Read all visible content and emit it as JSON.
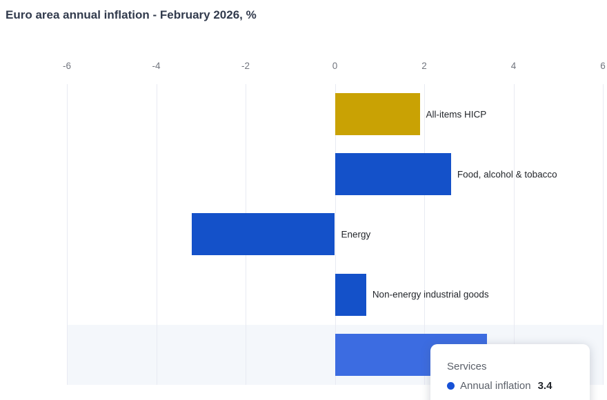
{
  "title": "Euro area annual inflation - February 2026, %",
  "chart_data": {
    "type": "bar",
    "orientation": "horizontal",
    "title": "Euro area annual inflation - February 2026, %",
    "categories": [
      "All-items HICP",
      "Food, alcohol & tobacco",
      "Energy",
      "Non-energy industrial goods",
      "Services"
    ],
    "values": [
      1.9,
      2.6,
      -3.2,
      0.7,
      3.4
    ],
    "series_name": "Annual inflation",
    "xlim": [
      -6,
      6
    ],
    "tick_values": [
      -6,
      -4,
      -2,
      0,
      2,
      4,
      6
    ],
    "tick_labels": [
      "-6",
      "-4",
      "-2",
      "0",
      "2",
      "4",
      "6"
    ],
    "grid": true,
    "bar_colors": [
      "#c9a204",
      "#1451c9",
      "#1451c9",
      "#1451c9",
      "#3c6ce1"
    ],
    "highlight_band_color": "#f4f7fb",
    "highlighted_category": "Services"
  },
  "tooltip": {
    "title": "Services",
    "series_label": "Annual inflation",
    "value": "3.4",
    "marker_color": "#1751d6"
  }
}
